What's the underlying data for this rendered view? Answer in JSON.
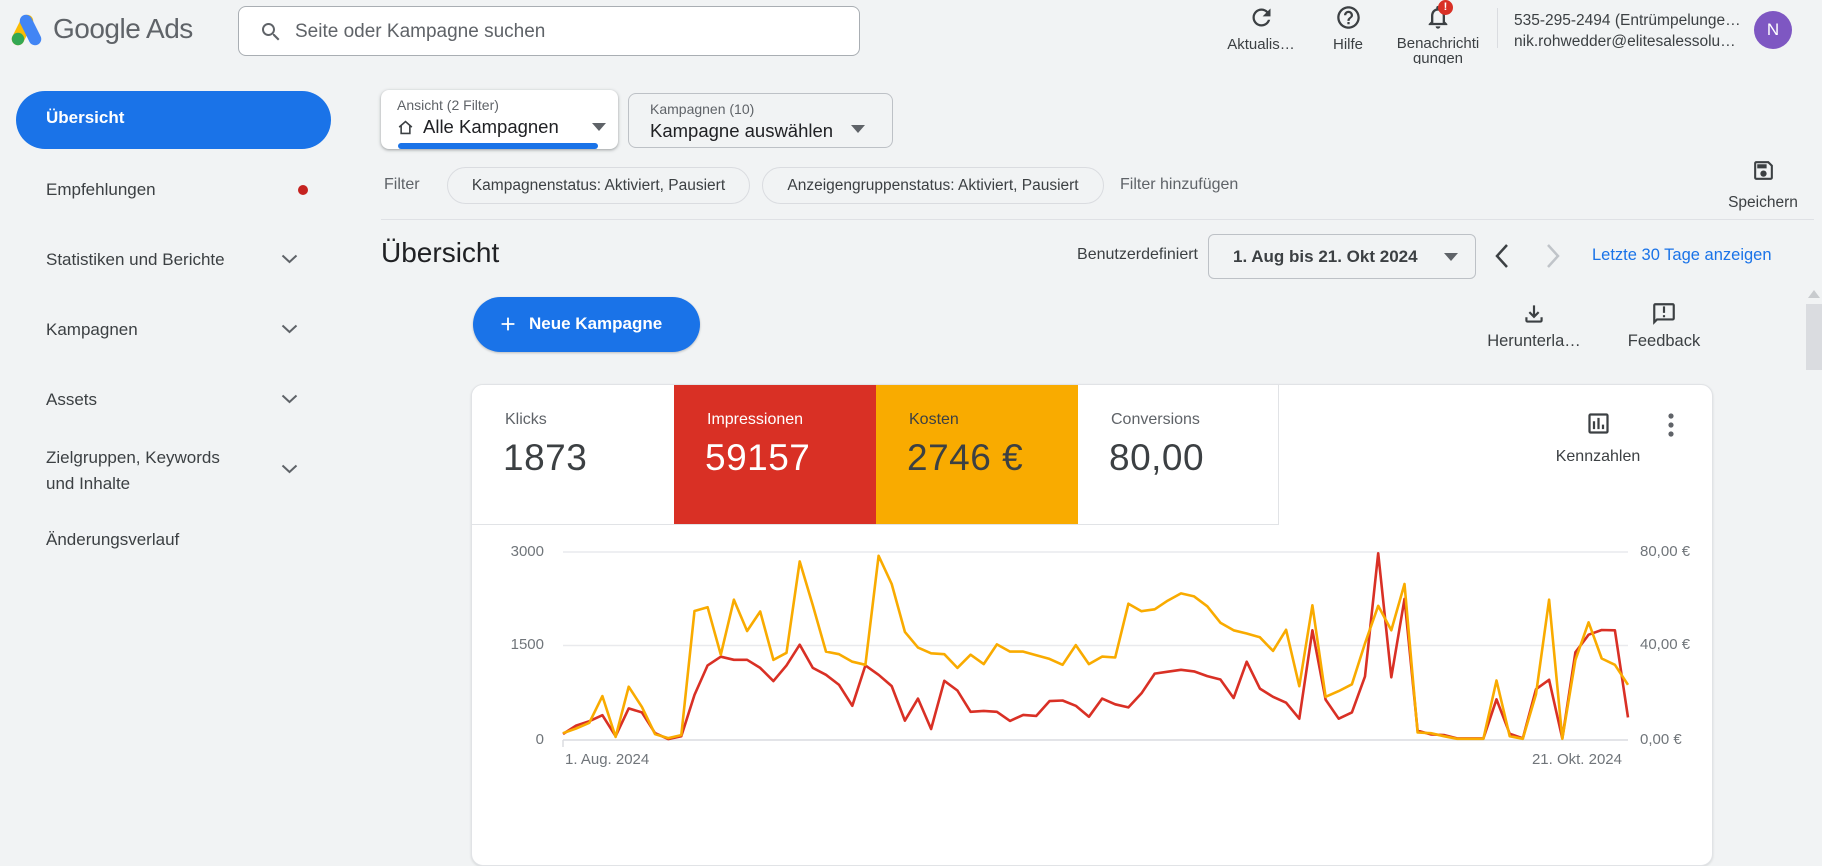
{
  "topbar": {
    "product": "Google Ads",
    "search_placeholder": "Seite oder Kampagne suchen",
    "refresh_label": "Aktualis…",
    "help_label": "Hilfe",
    "notifications_label_line1": "Benachrichti",
    "notifications_label_line2": "gungen",
    "notification_badge": "!",
    "account_id": "535-295-2494 (Entrümpelunge…",
    "account_email": "nik.rohwedder@elitesalessolu…",
    "avatar_initial": "N"
  },
  "sidebar": {
    "items": [
      {
        "label": "Übersicht"
      },
      {
        "label": "Empfehlungen"
      },
      {
        "label": "Statistiken und Berichte"
      },
      {
        "label": "Kampagnen"
      },
      {
        "label": "Assets"
      },
      {
        "label_line1": "Zielgruppen, Keywords",
        "label_line2": "und Inhalte"
      },
      {
        "label": "Änderungsverlauf"
      }
    ]
  },
  "selectors": {
    "view_label": "Ansicht (2 Filter)",
    "view_value": "Alle Kampagnen",
    "campaign_label": "Kampagnen (10)",
    "campaign_value": "Kampagne auswählen"
  },
  "filter_bar": {
    "label": "Filter",
    "chips": [
      {
        "text": "Kampagnenstatus: Aktiviert, Pausiert"
      },
      {
        "text": "Anzeigengruppenstatus: Aktiviert, Pausiert"
      }
    ],
    "add_label": "Filter hinzufügen",
    "save_label": "Speichern"
  },
  "overview": {
    "title": "Übersicht",
    "range_mode": "Benutzerdefiniert",
    "date_range": "1. Aug bis 21. Okt 2024",
    "last30_link": "Letzte 30 Tage anzeigen",
    "new_campaign_label": "Neue Kampagne",
    "download_label": "Herunterla…",
    "feedback_label": "Feedback",
    "metrics_label": "Kennzahlen"
  },
  "metrics": [
    {
      "label": "Klicks",
      "value": "1873"
    },
    {
      "label": "Impressionen",
      "value": "59157"
    },
    {
      "label": "Kosten",
      "value": "2746 €"
    },
    {
      "label": "Conversions",
      "value": "80,00"
    }
  ],
  "chart_data": {
    "type": "line",
    "x_range": [
      "1. Aug. 2024",
      "21. Okt. 2024"
    ],
    "x_start_label": "1. Aug. 2024",
    "x_end_label": "21. Okt. 2024",
    "grid": true,
    "left_axis": {
      "label": "Impressionen",
      "ticks": [
        "0",
        "1500",
        "3000"
      ],
      "max": 3000
    },
    "right_axis": {
      "label": "Kosten",
      "ticks": [
        "0,00 €",
        "40,00 €",
        "80,00 €"
      ],
      "max": 80
    },
    "series": [
      {
        "name": "Impressionen",
        "color": "#d93025",
        "axis": "left",
        "values": [
          95,
          230,
          300,
          395,
          60,
          505,
          440,
          110,
          15,
          60,
          720,
          1190,
          1330,
          1280,
          1280,
          1150,
          940,
          1190,
          1520,
          1150,
          1040,
          880,
          545,
          1190,
          1040,
          860,
          310,
          660,
          175,
          945,
          790,
          450,
          465,
          450,
          305,
          400,
          385,
          620,
          630,
          545,
          370,
          660,
          570,
          520,
          745,
          1060,
          1090,
          1120,
          1095,
          1020,
          965,
          670,
          1250,
          820,
          690,
          595,
          340,
          1750,
          645,
          340,
          440,
          1015,
          2980,
          1000,
          2250,
          150,
          90,
          80,
          25,
          25,
          25,
          650,
          100,
          25,
          810,
          960,
          25,
          1400,
          1680,
          1755,
          1750,
          360
        ]
      },
      {
        "name": "Kosten",
        "color": "#f9ab00",
        "axis": "right",
        "values": [
          2.9,
          4.9,
          7.3,
          18.7,
          1.3,
          22.7,
          14.1,
          2.5,
          0.8,
          2.1,
          54.9,
          56.5,
          36.3,
          59.7,
          46.4,
          54.7,
          34.1,
          37.1,
          76.0,
          57.3,
          37.6,
          36.5,
          33.3,
          32.0,
          78.4,
          66.4,
          46.0,
          39.3,
          36.9,
          36.5,
          30.7,
          36.3,
          32.3,
          40.7,
          37.6,
          37.6,
          36.1,
          34.5,
          32.0,
          40.4,
          32.3,
          35.5,
          35.1,
          58.0,
          54.8,
          55.6,
          59.3,
          62.4,
          61.1,
          56.9,
          49.9,
          46.7,
          45.3,
          43.7,
          37.9,
          46.9,
          22.9,
          57.3,
          18.4,
          20.8,
          23.7,
          41.1,
          57.1,
          46.7,
          66.4,
          3.2,
          2.9,
          1.6,
          0.5,
          0.5,
          0.5,
          25.3,
          1.6,
          0.5,
          19.5,
          59.7,
          0.5,
          34.1,
          50.1,
          34.7,
          32.0,
          23.5
        ]
      }
    ]
  }
}
